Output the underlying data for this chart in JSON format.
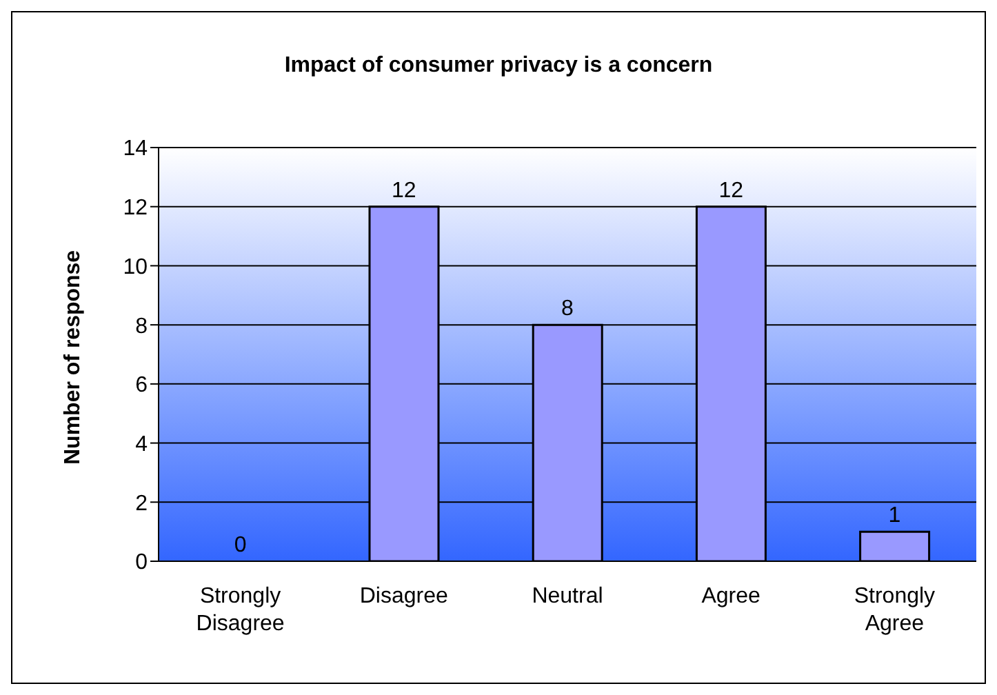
{
  "chart_data": {
    "type": "bar",
    "title": "Impact of consumer privacy is a concern",
    "ylabel": "Number of response",
    "categories": [
      "Strongly Disagree",
      "Disagree",
      "Neutral",
      "Agree",
      "Strongly Agree"
    ],
    "values": [
      0,
      12,
      8,
      12,
      1
    ],
    "color": "#9999ff",
    "ylim": [
      0,
      14
    ],
    "yticks": [
      0,
      2,
      4,
      6,
      8,
      10,
      12,
      14
    ],
    "grid": "y",
    "data_labels": true,
    "legend": false
  }
}
